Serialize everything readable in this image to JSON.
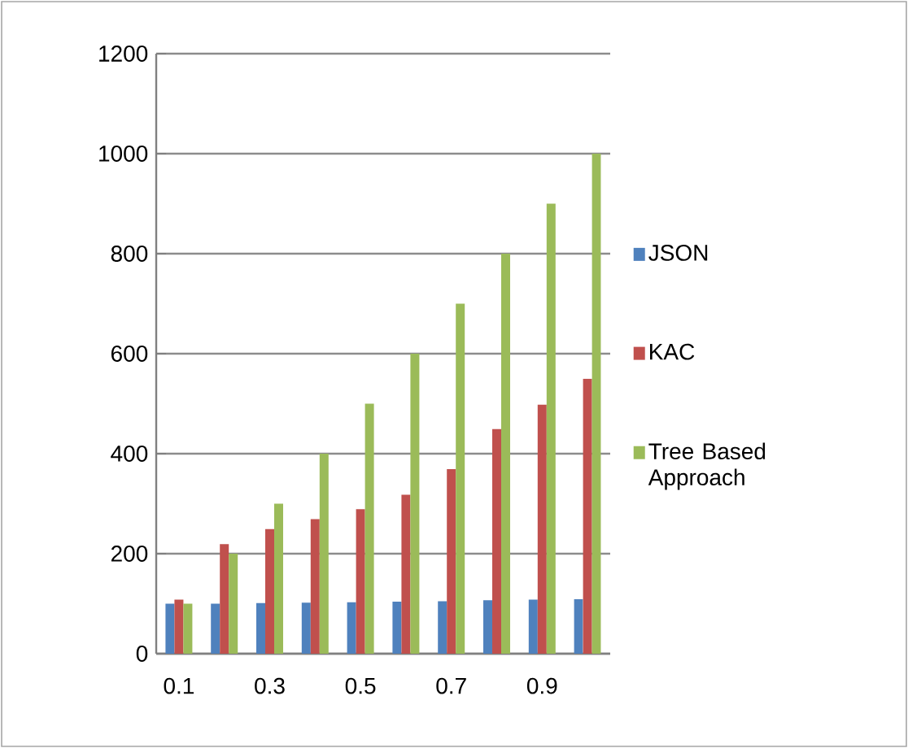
{
  "chart_data": {
    "type": "bar",
    "categories": [
      "0.1",
      null,
      "0.3",
      null,
      "0.5",
      null,
      "0.7",
      null,
      "0.9",
      null
    ],
    "series": [
      {
        "name": "JSON",
        "color": "#4f81bd",
        "values": [
          100,
          100,
          101,
          102,
          103,
          104,
          105,
          107,
          108,
          109
        ]
      },
      {
        "name": "KAC",
        "color": "#c0504d",
        "values": [
          108,
          219,
          249,
          269,
          289,
          318,
          369,
          449,
          498,
          550
        ]
      },
      {
        "name": "Tree Based Approach",
        "color": "#9bbb59",
        "values": [
          100,
          200,
          300,
          400,
          500,
          600,
          700,
          800,
          900,
          1000
        ]
      }
    ],
    "ylim": [
      0,
      1200
    ],
    "yticks": [
      0,
      200,
      400,
      600,
      800,
      1000,
      1200
    ],
    "grid": "y",
    "legend": "right"
  }
}
